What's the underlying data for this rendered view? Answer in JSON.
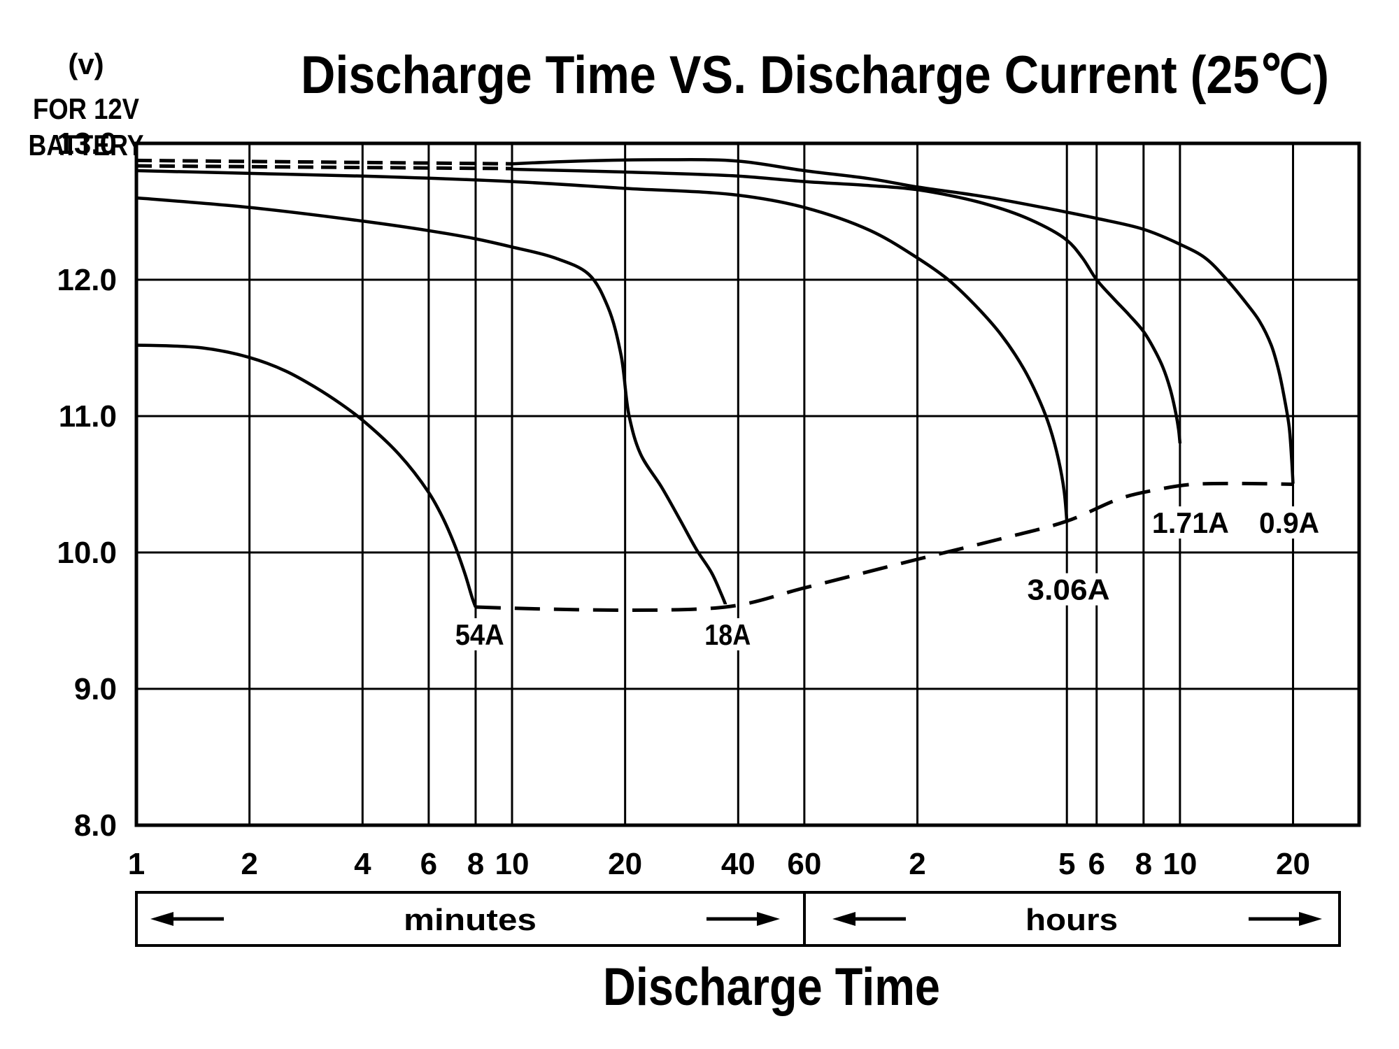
{
  "header": {
    "title": "Discharge Time VS. Discharge Current (25℃)"
  },
  "y_axis": {
    "unit_lines": [
      "(v)",
      "FOR 12V",
      "BATTERY"
    ],
    "tick_labels": [
      "13.0",
      "12.0",
      "11.0",
      "10.0",
      "9.0",
      "8.0"
    ]
  },
  "x_axis": {
    "minutes_label": "minutes",
    "hours_label": "hours",
    "axis_title": "Discharge Time",
    "minute_ticks": [
      {
        "label": "1",
        "t": 1
      },
      {
        "label": "2",
        "t": 2
      },
      {
        "label": "4",
        "t": 4
      },
      {
        "label": "6",
        "t": 6
      },
      {
        "label": "8",
        "t": 8
      },
      {
        "label": "10",
        "t": 10
      },
      {
        "label": "20",
        "t": 20
      },
      {
        "label": "40",
        "t": 40
      },
      {
        "label": "60",
        "t": 60
      }
    ],
    "hour_ticks": [
      {
        "label": "2",
        "t": 120
      },
      {
        "label": "5",
        "t": 300
      },
      {
        "label": "6",
        "t": 360
      },
      {
        "label": "8",
        "t": 480
      },
      {
        "label": "10",
        "t": 600
      },
      {
        "label": "20",
        "t": 1200
      }
    ]
  },
  "chart_data": {
    "type": "line",
    "title": "Discharge Time VS. Discharge Current (25℃)",
    "xlabel": "Discharge Time",
    "ylabel": "(v) FOR 12V BATTERY",
    "x_scale": "logarithmic, minutes, 1 min to ~30 h",
    "x_range_minutes": [
      1,
      1803
    ],
    "ylim": [
      8.0,
      13.0
    ],
    "grid": true,
    "y_gridlines": [
      9,
      10,
      11,
      12
    ],
    "x_gridlines_minutes": [
      2,
      4,
      6,
      8,
      10,
      20,
      40,
      60,
      120,
      300,
      360,
      480,
      600,
      1200
    ],
    "series": [
      {
        "name": "54A",
        "label_t": 8.2,
        "label_v": 9.4,
        "label_len": 70,
        "points": [
          [
            1,
            11.52
          ],
          [
            1.5,
            11.5
          ],
          [
            2,
            11.43
          ],
          [
            2.5,
            11.33
          ],
          [
            3,
            11.21
          ],
          [
            3.5,
            11.09
          ],
          [
            4,
            10.97
          ],
          [
            5,
            10.72
          ],
          [
            6,
            10.44
          ],
          [
            6.5,
            10.27
          ],
          [
            7,
            10.07
          ],
          [
            7.5,
            9.84
          ],
          [
            7.85,
            9.66
          ],
          [
            8,
            9.6
          ]
        ]
      },
      {
        "name": "18A",
        "label_t": 37.5,
        "label_v": 9.4,
        "label_len": 66,
        "points": [
          [
            1,
            12.6
          ],
          [
            2,
            12.53
          ],
          [
            4,
            12.43
          ],
          [
            6,
            12.36
          ],
          [
            8,
            12.3
          ],
          [
            10,
            12.24
          ],
          [
            13,
            12.16
          ],
          [
            16,
            12.04
          ],
          [
            18,
            11.8
          ],
          [
            19.5,
            11.45
          ],
          [
            20.5,
            11.0
          ],
          [
            22,
            10.72
          ],
          [
            25,
            10.48
          ],
          [
            28,
            10.24
          ],
          [
            31,
            10.02
          ],
          [
            34,
            9.85
          ],
          [
            36,
            9.7
          ],
          [
            37,
            9.62
          ]
        ]
      },
      {
        "name": "3.06A",
        "label_t": 303,
        "label_v": 9.73,
        "label_len": 118,
        "points": [
          [
            1,
            12.8
          ],
          [
            2,
            12.78
          ],
          [
            4,
            12.76
          ],
          [
            10,
            12.72
          ],
          [
            20,
            12.67
          ],
          [
            40,
            12.62
          ],
          [
            60,
            12.53
          ],
          [
            90,
            12.36
          ],
          [
            120,
            12.16
          ],
          [
            145,
            12.0
          ],
          [
            170,
            11.82
          ],
          [
            200,
            11.6
          ],
          [
            230,
            11.35
          ],
          [
            255,
            11.1
          ],
          [
            270,
            10.92
          ],
          [
            285,
            10.68
          ],
          [
            295,
            10.45
          ],
          [
            300,
            10.22
          ]
        ]
      },
      {
        "name": "1.71A",
        "label_t": 640,
        "label_v": 10.22,
        "label_len": 110,
        "points": [
          [
            10,
            12.81
          ],
          [
            20,
            12.79
          ],
          [
            40,
            12.76
          ],
          [
            60,
            12.72
          ],
          [
            90,
            12.69
          ],
          [
            120,
            12.66
          ],
          [
            180,
            12.56
          ],
          [
            240,
            12.44
          ],
          [
            300,
            12.29
          ],
          [
            330,
            12.16
          ],
          [
            360,
            12.0
          ],
          [
            400,
            11.86
          ],
          [
            440,
            11.74
          ],
          [
            480,
            11.62
          ],
          [
            510,
            11.5
          ],
          [
            540,
            11.36
          ],
          [
            565,
            11.2
          ],
          [
            585,
            11.02
          ],
          [
            595,
            10.9
          ],
          [
            600,
            10.8
          ]
        ]
      },
      {
        "name": "0.9A",
        "label_t": 1172,
        "label_v": 10.22,
        "label_len": 86,
        "points": [
          [
            10,
            12.85
          ],
          [
            15,
            12.87
          ],
          [
            25,
            12.88
          ],
          [
            40,
            12.87
          ],
          [
            60,
            12.8
          ],
          [
            90,
            12.74
          ],
          [
            120,
            12.68
          ],
          [
            180,
            12.61
          ],
          [
            270,
            12.52
          ],
          [
            360,
            12.45
          ],
          [
            480,
            12.37
          ],
          [
            600,
            12.26
          ],
          [
            700,
            12.16
          ],
          [
            800,
            12.0
          ],
          [
            900,
            11.83
          ],
          [
            975,
            11.7
          ],
          [
            1050,
            11.52
          ],
          [
            1100,
            11.33
          ],
          [
            1140,
            11.12
          ],
          [
            1172,
            10.92
          ],
          [
            1190,
            10.68
          ],
          [
            1200,
            10.5
          ]
        ]
      }
    ],
    "dashed_intro_segments": [
      {
        "name": "0.9A-early-dashed",
        "points": [
          [
            1,
            12.875
          ],
          [
            10,
            12.85
          ]
        ]
      },
      {
        "name": "1.71A-early-dashed",
        "points": [
          [
            1,
            12.835
          ],
          [
            10,
            12.815
          ]
        ]
      }
    ],
    "cutoff_dashed_line": {
      "name": "final-discharge-voltage",
      "points": [
        [
          8,
          9.6
        ],
        [
          37,
          9.6
        ],
        [
          60,
          9.74
        ],
        [
          120,
          9.95
        ],
        [
          200,
          10.1
        ],
        [
          300,
          10.23
        ],
        [
          420,
          10.4
        ],
        [
          520,
          10.46
        ],
        [
          650,
          10.5
        ],
        [
          1200,
          10.5
        ]
      ]
    },
    "legend_position": "labels at curve endpoints"
  }
}
